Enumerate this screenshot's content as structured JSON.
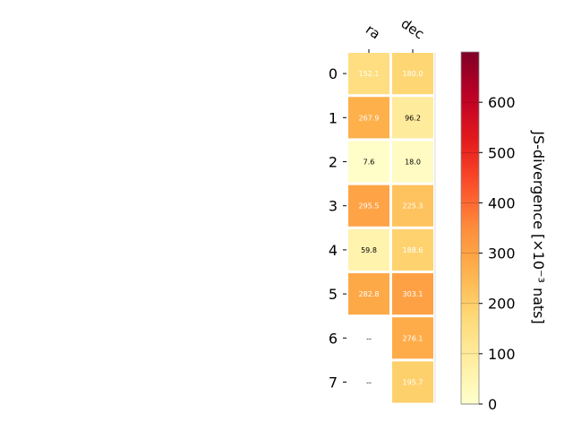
{
  "chart_data": {
    "type": "heatmap",
    "x_categories": [
      "ra",
      "dec"
    ],
    "y_categories": [
      "0",
      "1",
      "2",
      "3",
      "4",
      "5",
      "6",
      "7"
    ],
    "values": [
      [
        152.1,
        180.0
      ],
      [
        267.9,
        96.2
      ],
      [
        7.6,
        18.0
      ],
      [
        295.5,
        225.3
      ],
      [
        59.8,
        188.6
      ],
      [
        282.8,
        303.1
      ],
      [
        null,
        276.1
      ],
      [
        null,
        195.7
      ]
    ],
    "cell_labels": [
      [
        "152.1",
        "180.0"
      ],
      [
        "267.9",
        "96.2"
      ],
      [
        "7.6",
        "18.0"
      ],
      [
        "295.5",
        "225.3"
      ],
      [
        "59.8",
        "188.6"
      ],
      [
        "282.8",
        "303.1"
      ],
      [
        "--",
        "276.1"
      ],
      [
        "--",
        "195.7"
      ]
    ],
    "colorbar": {
      "label": "JS-divergence [×10⁻³ nats]",
      "range": [
        0,
        700
      ],
      "ticks": [
        "0",
        "100",
        "200",
        "300",
        "400",
        "500",
        "600"
      ],
      "tick_values": [
        0,
        100,
        200,
        300,
        400,
        500,
        600
      ],
      "colormap": "YlOrRd"
    },
    "xlabel": "",
    "ylabel": "",
    "title": ""
  }
}
